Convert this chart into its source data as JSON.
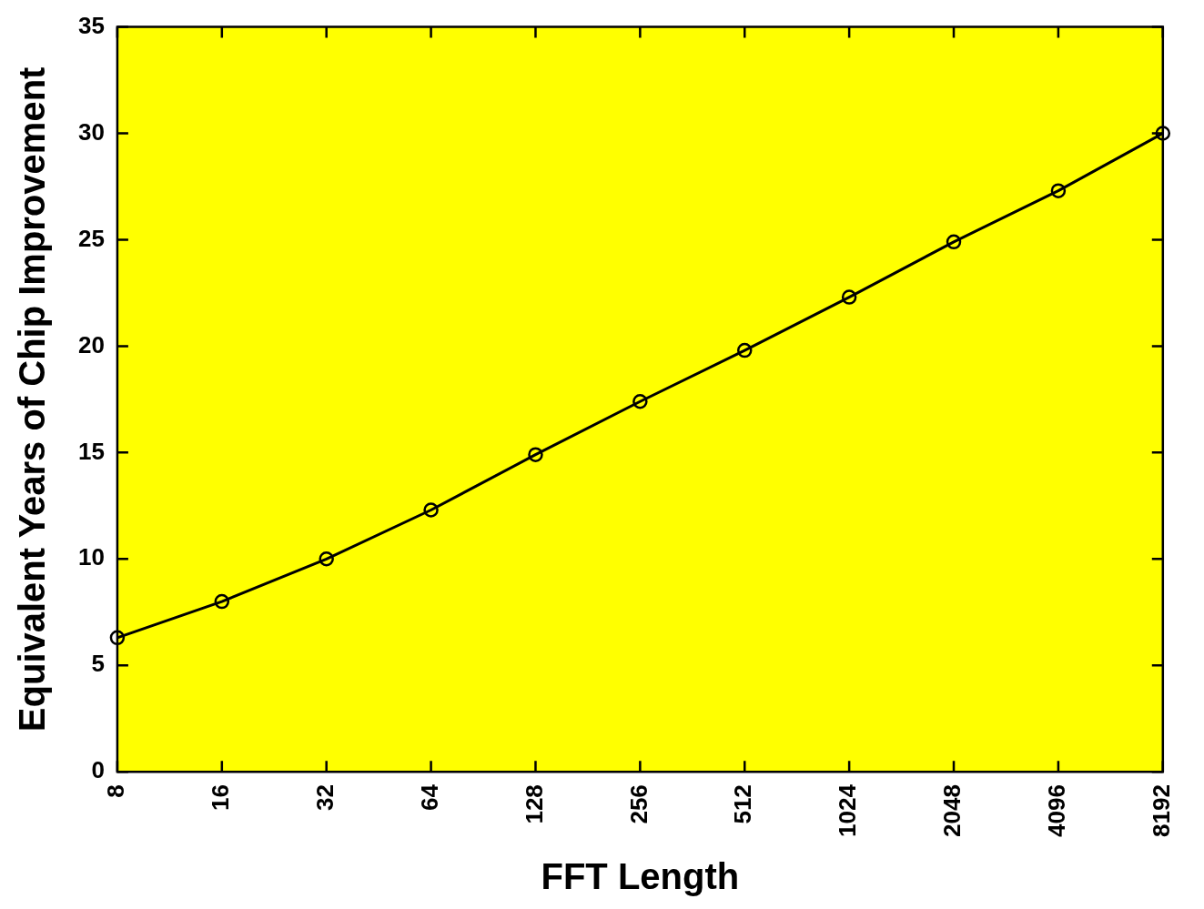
{
  "chart_data": {
    "type": "line",
    "xlabel": "FFT Length",
    "ylabel": "Equivalent Years of Chip Improvement",
    "categories": [
      "8",
      "16",
      "32",
      "64",
      "128",
      "256",
      "512",
      "1024",
      "2048",
      "4096",
      "8192"
    ],
    "series": [
      {
        "color": "#000000",
        "values": [
          6.3,
          8.0,
          10.0,
          12.3,
          14.9,
          17.4,
          19.8,
          22.3,
          24.9,
          27.3,
          30.0
        ]
      }
    ],
    "ylim": [
      0,
      35
    ],
    "yticks": [
      0,
      5,
      10,
      15,
      20,
      25,
      30,
      35
    ],
    "grid": false,
    "legend": false,
    "marker": "circle",
    "line_style": "solid"
  }
}
